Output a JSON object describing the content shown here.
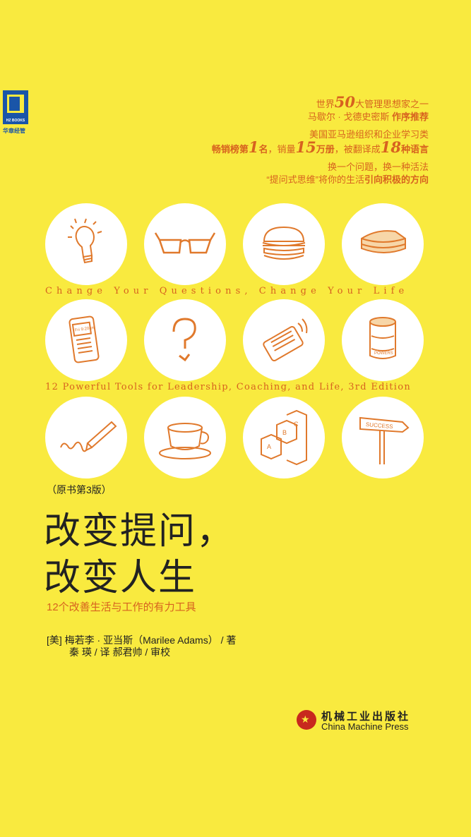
{
  "publisher_logo": {
    "caption": "HZ BOOKS",
    "name": "华章经管"
  },
  "blurbs": {
    "line1_a": "世界",
    "line1_num": "50",
    "line1_b": "大管理思想家之一",
    "line2_a": "马歇尔 · 戈德史密斯 ",
    "line2_b": "作序推荐",
    "line3": "美国亚马逊组织和企业学习类",
    "line4_a": "畅销榜第",
    "line4_num1": "1",
    "line4_b": "名",
    "line4_c": "，销量",
    "line4_num2": "15",
    "line4_d": "万册",
    "line4_e": "，被翻译成",
    "line4_num3": "18",
    "line4_f": "种语言",
    "line5": "换一个问题，换一种活法",
    "line6_a": "“提问式思维”将你的生活",
    "line6_b": "引向积极的方向"
  },
  "taglines": {
    "line1": "Change Your Questions, Change Your Life",
    "line2": "12 Powerful Tools for Leadership, Coaching, and Life, 3rd Edition"
  },
  "icons": [
    "lightbulb-icon",
    "glasses-icon",
    "hamburger-icon",
    "cake-icon",
    "phone-icon",
    "question-mark-icon",
    "smartphone-icon",
    "can-icon",
    "pencil-icon",
    "coffee-cup-icon",
    "abc-blocks-icon",
    "success-sign-icon"
  ],
  "icon_texts": {
    "phone": "Fri 9:20am",
    "can": "POWERS",
    "sign": "SUCCESS"
  },
  "edition": "（原书第3版）",
  "title": {
    "line1": "改变提问，",
    "line2": "改变人生"
  },
  "subtitle": "12个改善生活与工作的有力工具",
  "credits": {
    "line1": "[美]  梅若李 · 亚当斯（Marilee Adams）  / 著",
    "line2": "秦   瑛  / 译   郝君帅  / 审校"
  },
  "publisher": {
    "cn": "机械工业出版社",
    "en": "China Machine Press"
  },
  "colors": {
    "background": "#f9ea3f",
    "accent": "#d7621f",
    "text": "#222222"
  }
}
